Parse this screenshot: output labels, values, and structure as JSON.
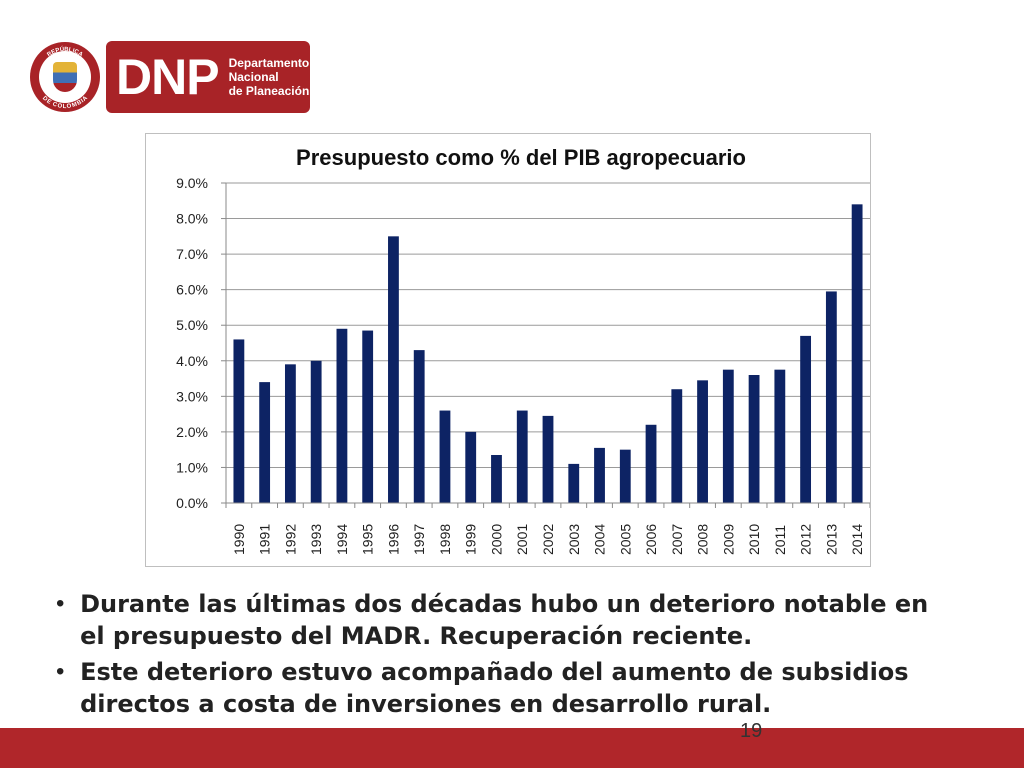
{
  "logo": {
    "seal_text_top": "REPÚBLICA",
    "seal_text_bottom": "DE COLOMBIA",
    "brand": "DNP",
    "brand_lines": [
      "Departamento",
      "Nacional",
      "de Planeación"
    ],
    "color_primary": "#a82327"
  },
  "chart_data": {
    "type": "bar",
    "title": "Presupuesto como % del PIB agropecuario",
    "xlabel": "",
    "ylabel": "",
    "ylim": [
      0,
      9
    ],
    "yticks": [
      "0.0%",
      "1.0%",
      "2.0%",
      "3.0%",
      "4.0%",
      "5.0%",
      "6.0%",
      "7.0%",
      "8.0%",
      "9.0%"
    ],
    "grid": true,
    "legend": "none",
    "bar_color": "#0d2364",
    "categories": [
      "1990",
      "1991",
      "1992",
      "1993",
      "1994",
      "1995",
      "1996",
      "1997",
      "1998",
      "1999",
      "2000",
      "2001",
      "2002",
      "2003",
      "2004",
      "2005",
      "2006",
      "2007",
      "2008",
      "2009",
      "2010",
      "2011",
      "2012",
      "2013",
      "2014"
    ],
    "values": [
      4.6,
      3.4,
      3.9,
      4.0,
      4.9,
      4.85,
      7.5,
      4.3,
      2.6,
      2.0,
      1.35,
      2.6,
      2.45,
      1.1,
      1.55,
      1.5,
      2.2,
      3.2,
      3.45,
      3.75,
      3.6,
      3.75,
      4.7,
      5.95,
      8.4
    ]
  },
  "bullets": [
    "Durante las últimas dos décadas hubo un deterioro notable en el presupuesto del MADR. Recuperación reciente.",
    "Este deterioro estuvo acompañado del aumento de subsidios directos a costa de inversiones en desarrollo rural."
  ],
  "bullet_symbol": "•",
  "page_number": "19"
}
